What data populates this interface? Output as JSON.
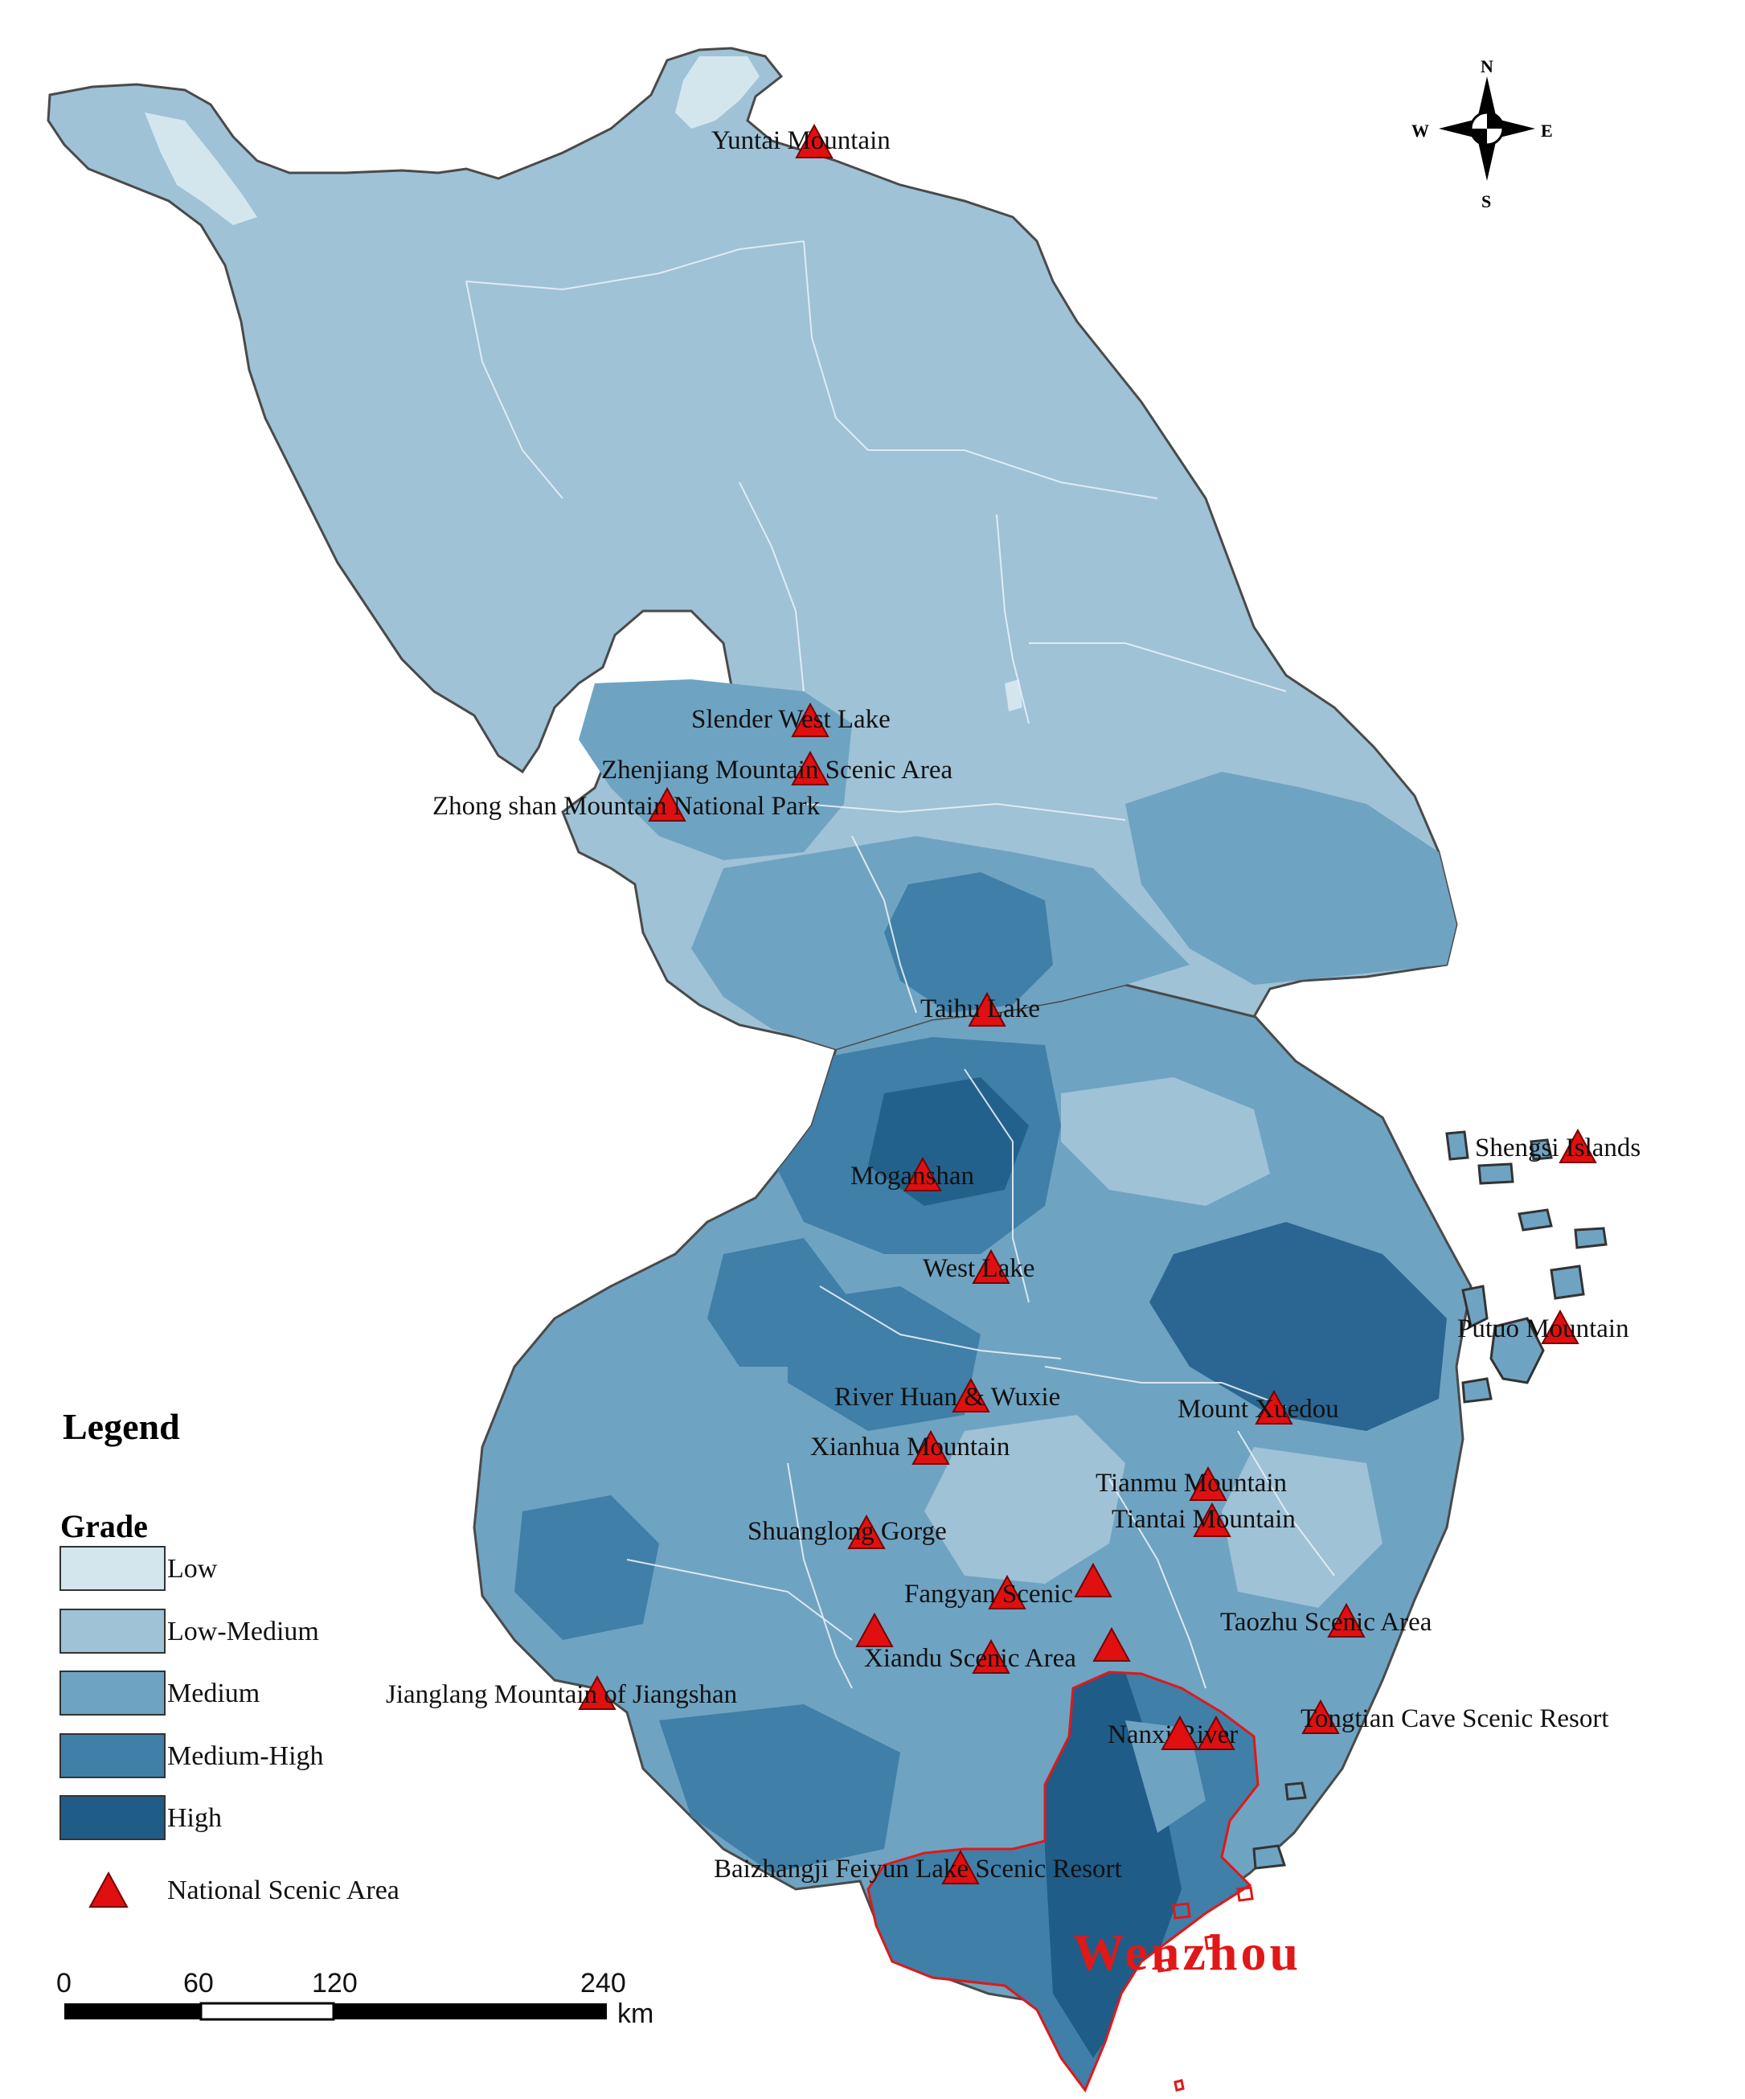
{
  "legend": {
    "title": "Legend",
    "subtitle": "Grade",
    "items": [
      {
        "label": "Low",
        "color": "#d3e6ee"
      },
      {
        "label": "Low-Medium",
        "color": "#9fc2d6"
      },
      {
        "label": "Medium",
        "color": "#6fa3c2"
      },
      {
        "label": "Medium-High",
        "color": "#3f7fa8"
      },
      {
        "label": "High",
        "color": "#1f5c88"
      }
    ],
    "marker_label": "National Scenic Area",
    "marker_color": "#e01010"
  },
  "scale_bar": {
    "ticks": [
      "0",
      "60",
      "120",
      "240"
    ],
    "unit": "km"
  },
  "compass": {
    "n": "N",
    "s": "S",
    "e": "E",
    "w": "W"
  },
  "highlight": {
    "label": "Wenzhou",
    "color": "#e01818"
  },
  "scenic_areas": [
    {
      "name": "Yuntai Mountain"
    },
    {
      "name": "Slender West Lake"
    },
    {
      "name": "Zhenjiang Mountain Scenic Area"
    },
    {
      "name": "Zhong shan Mountain National Park"
    },
    {
      "name": "Taihu Lake"
    },
    {
      "name": "Shengsi Islands"
    },
    {
      "name": "Moganshan"
    },
    {
      "name": "West Lake"
    },
    {
      "name": "Putuo Mountain"
    },
    {
      "name": "River Huan & Wuxie"
    },
    {
      "name": "Mount Xuedou"
    },
    {
      "name": "Xianhua Mountain"
    },
    {
      "name": "Tianmu Mountain"
    },
    {
      "name": "Tiantai Mountain"
    },
    {
      "name": "Shuanglong Gorge"
    },
    {
      "name": "Fangyan Scenic"
    },
    {
      "name": "Taozhu Scenic Area"
    },
    {
      "name": "Xiandu Scenic Area"
    },
    {
      "name": "Jianglang Mountain of Jiangshan"
    },
    {
      "name": "Tongtian Cave Scenic Resort"
    },
    {
      "name": "Nanxi River"
    },
    {
      "name": "Baizhangji Feiyun Lake Scenic Resort"
    }
  ]
}
